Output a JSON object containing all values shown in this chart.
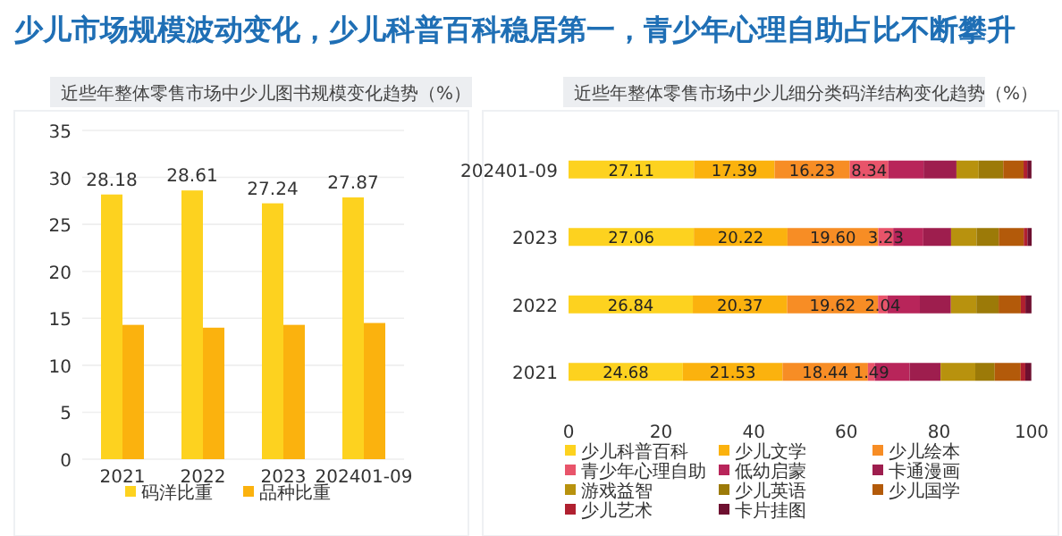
{
  "chart_data": [
    {
      "type": "bar",
      "title": "少儿市场规模波动变化，少儿科普百科稳居第一，青少年心理自助占比不断攀升",
      "subtitle": "近些年整体零售市场中少儿图书规模变化趋势（%）",
      "categories": [
        "2021",
        "2022",
        "2023",
        "202401-09"
      ],
      "ylim": [
        0,
        35
      ],
      "yticks": [
        0,
        5,
        10,
        15,
        20,
        25,
        30,
        35
      ],
      "grid": "y",
      "legend": "bottom",
      "series": [
        {
          "name": "码洋比重",
          "color": "#fdd21f",
          "values": [
            28.18,
            28.61,
            27.24,
            27.87
          ],
          "value_labels": [
            "28.18",
            "28.61",
            "27.24",
            "27.87"
          ]
        },
        {
          "name": "品种比重",
          "color": "#fbb20e",
          "values": [
            14.3,
            14.0,
            14.3,
            14.5
          ]
        }
      ]
    },
    {
      "type": "bar",
      "orientation": "horizontal",
      "stacked": true,
      "title": "近些年整体零售市场中少儿细分类码洋结构变化趋势（%）",
      "categories": [
        "202401-09",
        "2023",
        "2022",
        "2021"
      ],
      "xlim": [
        0,
        100
      ],
      "xticks": [
        0,
        20,
        40,
        60,
        80,
        100
      ],
      "legend": "bottom",
      "series": [
        {
          "name": "少儿科普百科",
          "color": "#fdd21f",
          "values": [
            27.11,
            27.06,
            26.84,
            24.68
          ],
          "value_labels": [
            "27.11",
            "27.06",
            "26.84",
            "24.68"
          ]
        },
        {
          "name": "少儿文学",
          "color": "#fbb20e",
          "values": [
            17.39,
            20.22,
            20.37,
            21.53
          ],
          "value_labels": [
            "17.39",
            "20.22",
            "20.37",
            "21.53"
          ]
        },
        {
          "name": "少儿绘本",
          "color": "#f78d25",
          "values": [
            16.23,
            19.6,
            19.62,
            18.44
          ],
          "value_labels": [
            "16.23",
            "19.60",
            "19.62",
            "18.44"
          ]
        },
        {
          "name": "青少年心理自助",
          "color": "#e8546a",
          "values": [
            8.34,
            3.23,
            2.04,
            1.49
          ],
          "value_labels": [
            "8.34",
            "3.23",
            "2.04",
            "1.49"
          ]
        },
        {
          "name": "低幼启蒙",
          "color": "#b8255a",
          "values": [
            7.6,
            6.5,
            7.0,
            7.5
          ]
        },
        {
          "name": "卡通漫画",
          "color": "#9e1e4e",
          "values": [
            7.1,
            6.0,
            6.7,
            6.7
          ]
        },
        {
          "name": "游戏益智",
          "color": "#b8920e",
          "values": [
            4.8,
            5.5,
            5.5,
            7.5
          ]
        },
        {
          "name": "少儿英语",
          "color": "#9c7a08",
          "values": [
            5.3,
            4.8,
            4.8,
            4.2
          ]
        },
        {
          "name": "少儿国学",
          "color": "#b35a0a",
          "values": [
            4.4,
            5.4,
            4.8,
            5.6
          ]
        },
        {
          "name": "少儿艺术",
          "color": "#b02030",
          "values": [
            0.8,
            0.8,
            1.0,
            1.0
          ]
        },
        {
          "name": "卡片挂图",
          "color": "#6e1030",
          "values": [
            0.9,
            0.9,
            1.3,
            1.3
          ]
        }
      ]
    }
  ]
}
